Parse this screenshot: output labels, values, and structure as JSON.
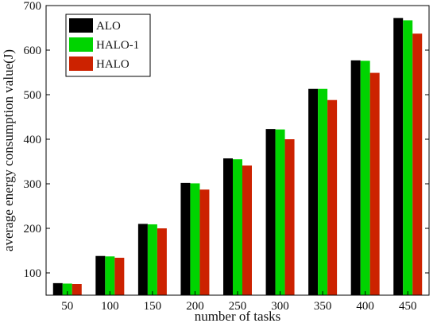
{
  "chart_data": {
    "type": "bar",
    "xlabel": "number of tasks",
    "ylabel": "average energy consumption value(J)",
    "categories": [
      "50",
      "100",
      "150",
      "200",
      "250",
      "300",
      "350",
      "400",
      "450"
    ],
    "ylim": [
      50,
      700
    ],
    "yticks": [
      100,
      200,
      300,
      400,
      500,
      600,
      700
    ],
    "legend_position": "top-left",
    "grid": false,
    "series": [
      {
        "name": "ALO",
        "color": "#000000",
        "values": [
          77,
          138,
          210,
          302,
          357,
          423,
          513,
          577,
          672
        ]
      },
      {
        "name": "HALO-1",
        "color": "#00d400",
        "values": [
          76,
          137,
          209,
          301,
          355,
          422,
          513,
          576,
          667
        ]
      },
      {
        "name": "HALO",
        "color": "#cc2200",
        "values": [
          75,
          134,
          200,
          287,
          341,
          400,
          488,
          549,
          637
        ]
      }
    ]
  }
}
